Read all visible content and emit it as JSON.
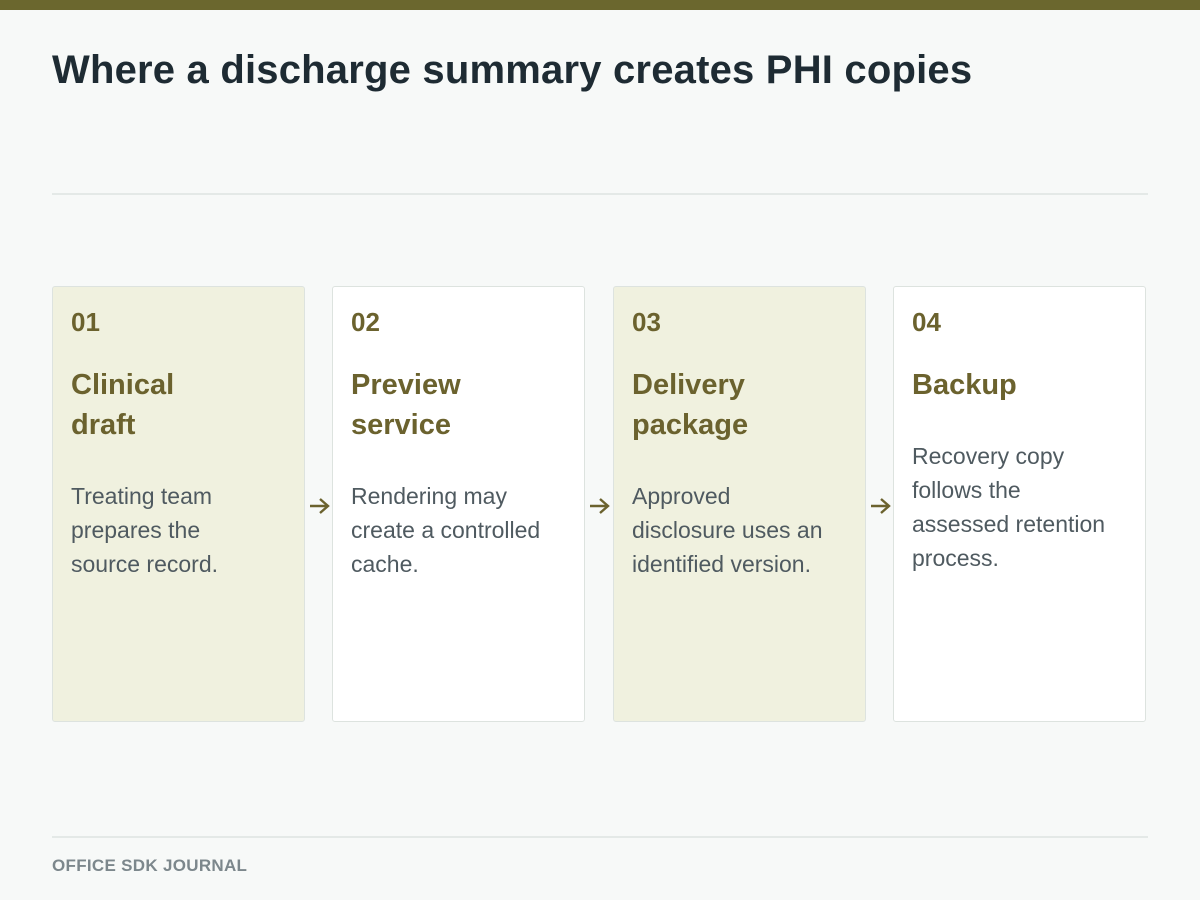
{
  "title": "Where a discharge summary creates PHI copies",
  "footer": "OFFICE SDK JOURNAL",
  "steps": [
    {
      "number": "01",
      "title": "Clinical draft",
      "description": "Treating team prepares the source record."
    },
    {
      "number": "02",
      "title": "Preview service",
      "description": "Rendering may create a controlled cache."
    },
    {
      "number": "03",
      "title": "Delivery package",
      "description": "Approved disclosure uses an identified version."
    },
    {
      "number": "04",
      "title": "Backup",
      "description": "Recovery copy follows the assessed retention process."
    }
  ],
  "colors": {
    "accent": "#6b672e",
    "tint": "#f0f1df",
    "text": "#1e2b33"
  }
}
